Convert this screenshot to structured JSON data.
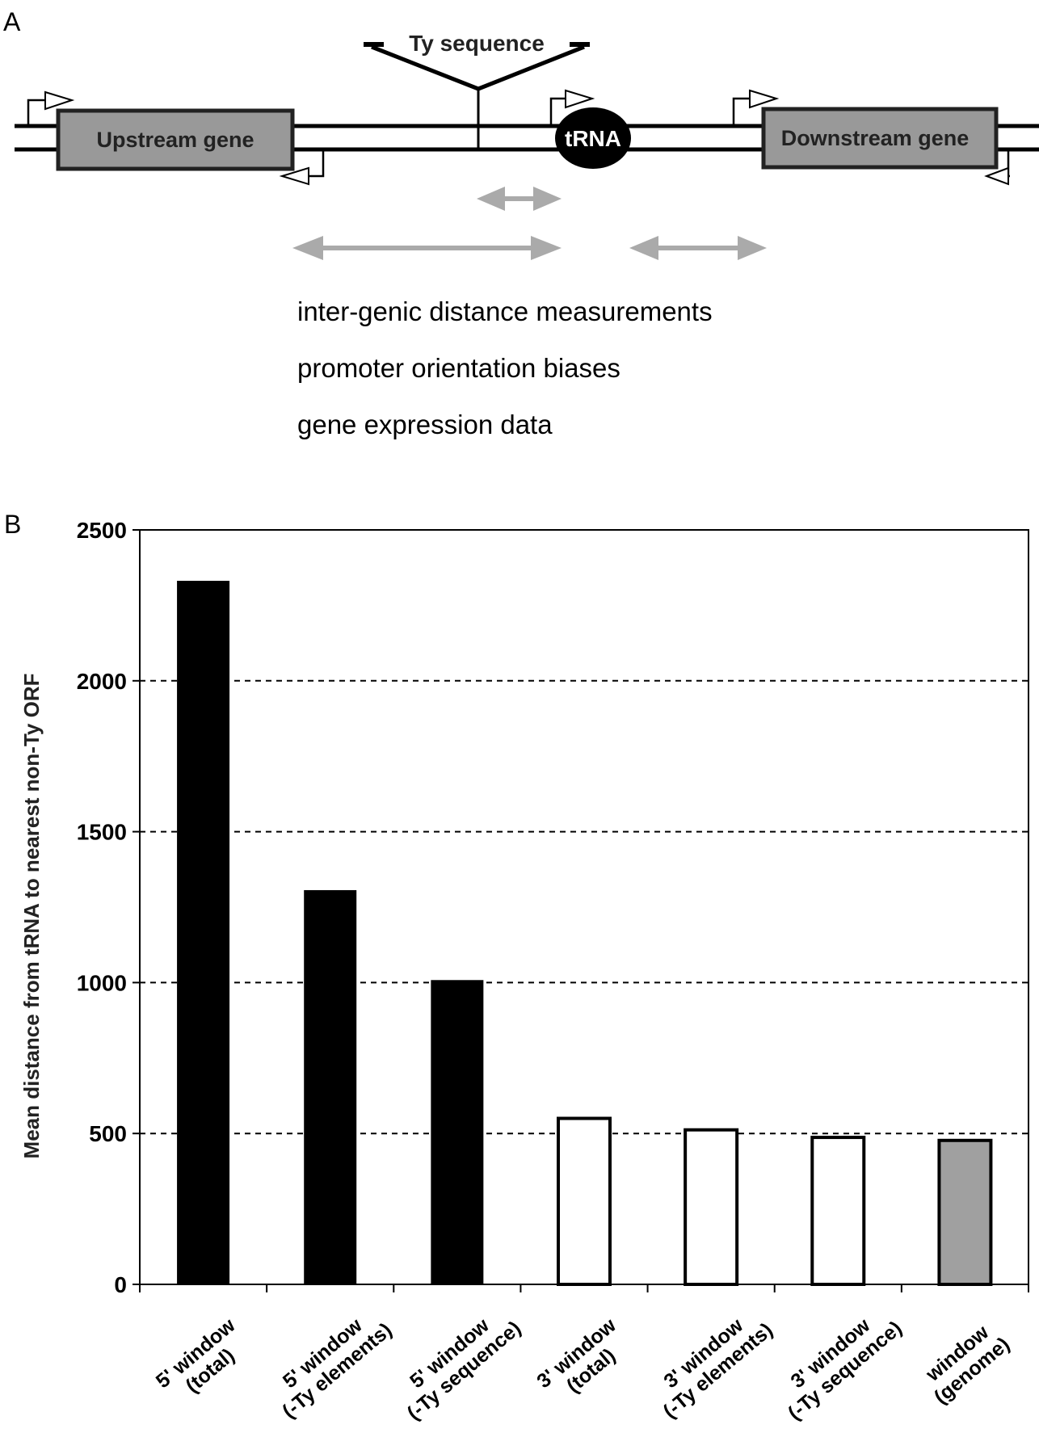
{
  "panel_a": {
    "label": "A",
    "insertion_label": "Ty sequence",
    "upstream_gene": "Upstream gene",
    "downstream_gene": "Downstream gene",
    "trna": "tRNA",
    "analyses": [
      "inter-genic distance measurements",
      "promoter orientation biases",
      "gene expression data"
    ],
    "colors": {
      "gene_box": "#999999",
      "distance_arrow": "#aaaaaa"
    }
  },
  "panel_b": {
    "label": "B"
  },
  "chart_data": {
    "type": "bar",
    "title": "",
    "xlabel": "",
    "ylabel": "Mean distance from tRNA to nearest non-Ty ORF",
    "ylim": [
      0,
      2500
    ],
    "yticks": [
      "0",
      "500",
      "1000",
      "1500",
      "2000",
      "2500"
    ],
    "grid": "horizontal dashed",
    "categories": [
      [
        "5' window",
        "(total)"
      ],
      [
        "5' window",
        "(-Ty elements)"
      ],
      [
        "5' window",
        "(-Ty sequence)"
      ],
      [
        "3' window",
        "(total)"
      ],
      [
        "3' window",
        "(-Ty elements)"
      ],
      [
        "3' window",
        "(-Ty sequence)"
      ],
      [
        "window",
        "(genome)"
      ]
    ],
    "values": [
      2330,
      1305,
      1007,
      550,
      512,
      487,
      477
    ],
    "bar_colors": [
      "#000000",
      "#000000",
      "#000000",
      "#ffffff",
      "#ffffff",
      "#ffffff",
      "#a0a0a0"
    ]
  }
}
